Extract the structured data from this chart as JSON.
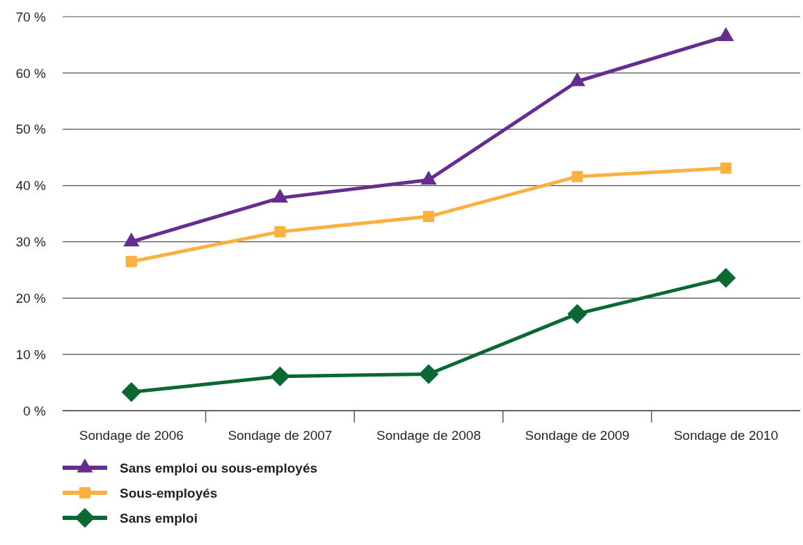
{
  "chart_data": {
    "type": "line",
    "categories": [
      "Sondage de 2006",
      "Sondage de 2007",
      "Sondage de 2008",
      "Sondage de 2009",
      "Sondage de 2010"
    ],
    "series": [
      {
        "name": "Sans emploi ou sous-employés",
        "color": "#652d90",
        "marker": "triangle",
        "values": [
          30,
          37.8,
          41,
          58.5,
          66.5
        ]
      },
      {
        "name": "Sous-employés",
        "color": "#fbb040",
        "marker": "square",
        "values": [
          26.5,
          31.8,
          34.5,
          41.6,
          43.1
        ]
      },
      {
        "name": "Sans emploi",
        "color": "#0b6835",
        "marker": "diamond",
        "values": [
          3.3,
          6.1,
          6.5,
          17.2,
          23.6
        ]
      }
    ],
    "ylim": [
      0,
      70
    ],
    "yticks": [
      {
        "value": 0,
        "label": "0 %"
      },
      {
        "value": 10,
        "label": "10 %"
      },
      {
        "value": 20,
        "label": "20 %"
      },
      {
        "value": 30,
        "label": "30 %"
      },
      {
        "value": 40,
        "label": "40 %"
      },
      {
        "value": 50,
        "label": "50 %"
      },
      {
        "value": 60,
        "label": "60 %"
      },
      {
        "value": 70,
        "label": "70 %"
      }
    ],
    "grid": "y",
    "legend": "bottom left",
    "line_style": "solid"
  }
}
